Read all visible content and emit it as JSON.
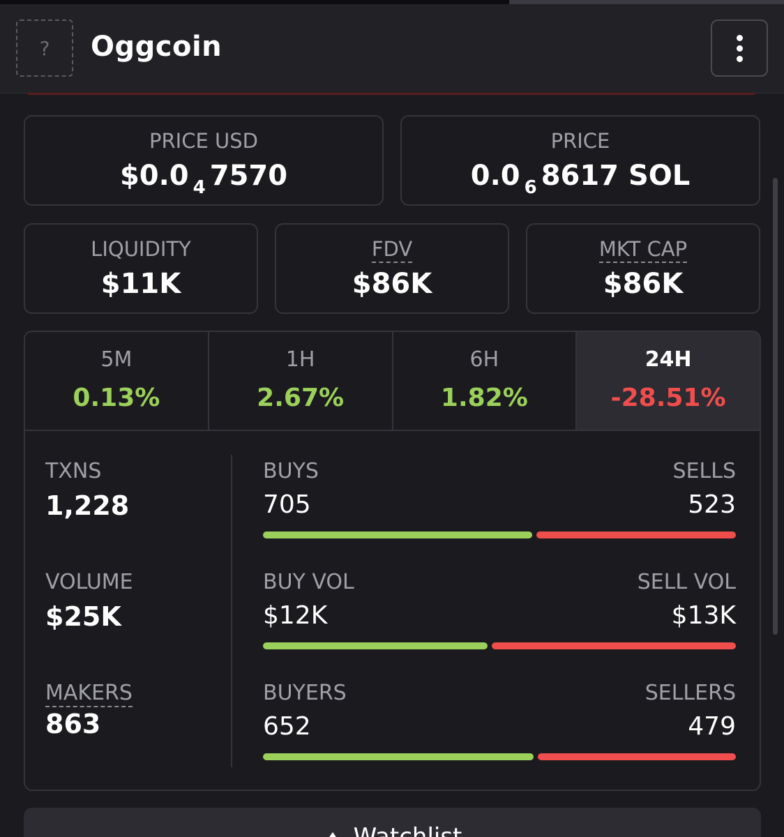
{
  "header": {
    "token_name": "Oggcoin",
    "token_icon_placeholder": "?"
  },
  "price_usd": {
    "label": "PRICE USD",
    "prefix": "$0.0",
    "zeros": "4",
    "digits": "7570"
  },
  "price_sol": {
    "label": "PRICE",
    "prefix": "0.0",
    "zeros": "6",
    "digits": "8617 SOL"
  },
  "metrics": {
    "liquidity": {
      "label": "LIQUIDITY",
      "value": "$11K"
    },
    "fdv": {
      "label": "FDV",
      "value": "$86K"
    },
    "mkt_cap": {
      "label": "MKT CAP",
      "value": "$86K"
    }
  },
  "timeframes": [
    {
      "label": "5M",
      "change": "0.13%",
      "direction": "up"
    },
    {
      "label": "1H",
      "change": "2.67%",
      "direction": "up"
    },
    {
      "label": "6H",
      "change": "1.82%",
      "direction": "up"
    },
    {
      "label": "24H",
      "change": "-28.51%",
      "direction": "down",
      "selected": true
    }
  ],
  "stats": {
    "txns": {
      "label": "TXNS",
      "value": "1,228"
    },
    "volume": {
      "label": "VOLUME",
      "value": "$25K"
    },
    "makers": {
      "label": "MAKERS",
      "value": "863"
    }
  },
  "pairs": {
    "txns": {
      "left_label": "BUYS",
      "left_value": "705",
      "right_label": "SELLS",
      "right_value": "523",
      "buy_fraction": 0.574
    },
    "volume": {
      "left_label": "BUY VOL",
      "left_value": "$12K",
      "right_label": "SELL VOL",
      "right_value": "$13K",
      "buy_fraction": 0.48
    },
    "makers": {
      "left_label": "BUYERS",
      "left_value": "652",
      "right_label": "SELLERS",
      "right_value": "479",
      "buy_fraction": 0.576
    }
  },
  "watchlist": {
    "label": "Watchlist"
  },
  "colors": {
    "positive": "#9bd15a",
    "negative": "#f04d4d",
    "background": "#1b1b1f",
    "border": "#34343a"
  }
}
